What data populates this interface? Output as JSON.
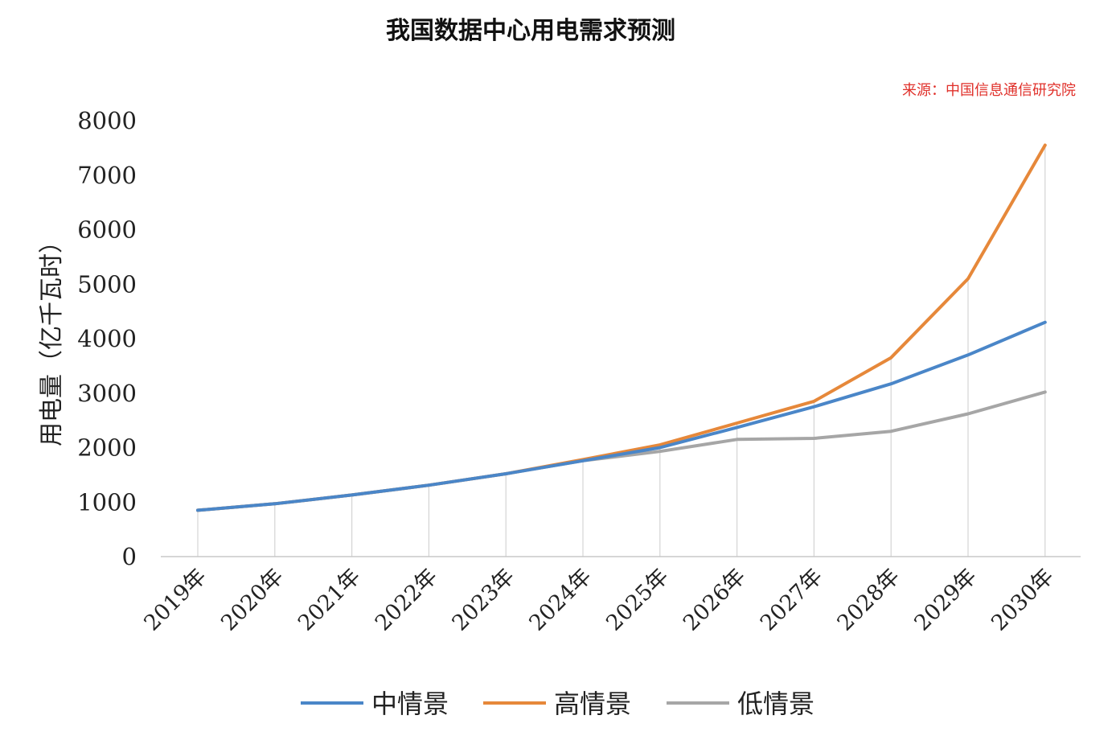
{
  "chart_data": {
    "type": "line",
    "title": "我国数据中心用电需求预测",
    "source_note": "来源：中国信息通信研究院",
    "ylabel": "用电量（亿千瓦时）",
    "xlabel": "",
    "ylim": [
      0,
      8000
    ],
    "yticks": [
      "0",
      "1000",
      "2000",
      "3000",
      "4000",
      "5000",
      "6000",
      "7000",
      "8000"
    ],
    "categories": [
      "2019年",
      "2020年",
      "2021年",
      "2022年",
      "2023年",
      "2024年",
      "2025年",
      "2026年",
      "2027年",
      "2028年",
      "2029年",
      "2030年"
    ],
    "legend_position": "bottom",
    "grid": "vertical",
    "series": [
      {
        "name": "中情景",
        "color": "#4a86c8",
        "values": [
          850,
          970,
          1130,
          1310,
          1520,
          1760,
          2000,
          2370,
          2750,
          3170,
          3700,
          4300
        ]
      },
      {
        "name": "高情景",
        "color": "#e6883a",
        "values": [
          850,
          970,
          1130,
          1310,
          1520,
          1780,
          2050,
          2450,
          2850,
          3650,
          5100,
          7550
        ]
      },
      {
        "name": "低情景",
        "color": "#a6a6a6",
        "values": [
          850,
          970,
          1130,
          1310,
          1520,
          1760,
          1930,
          2150,
          2170,
          2300,
          2620,
          3020
        ]
      }
    ]
  }
}
